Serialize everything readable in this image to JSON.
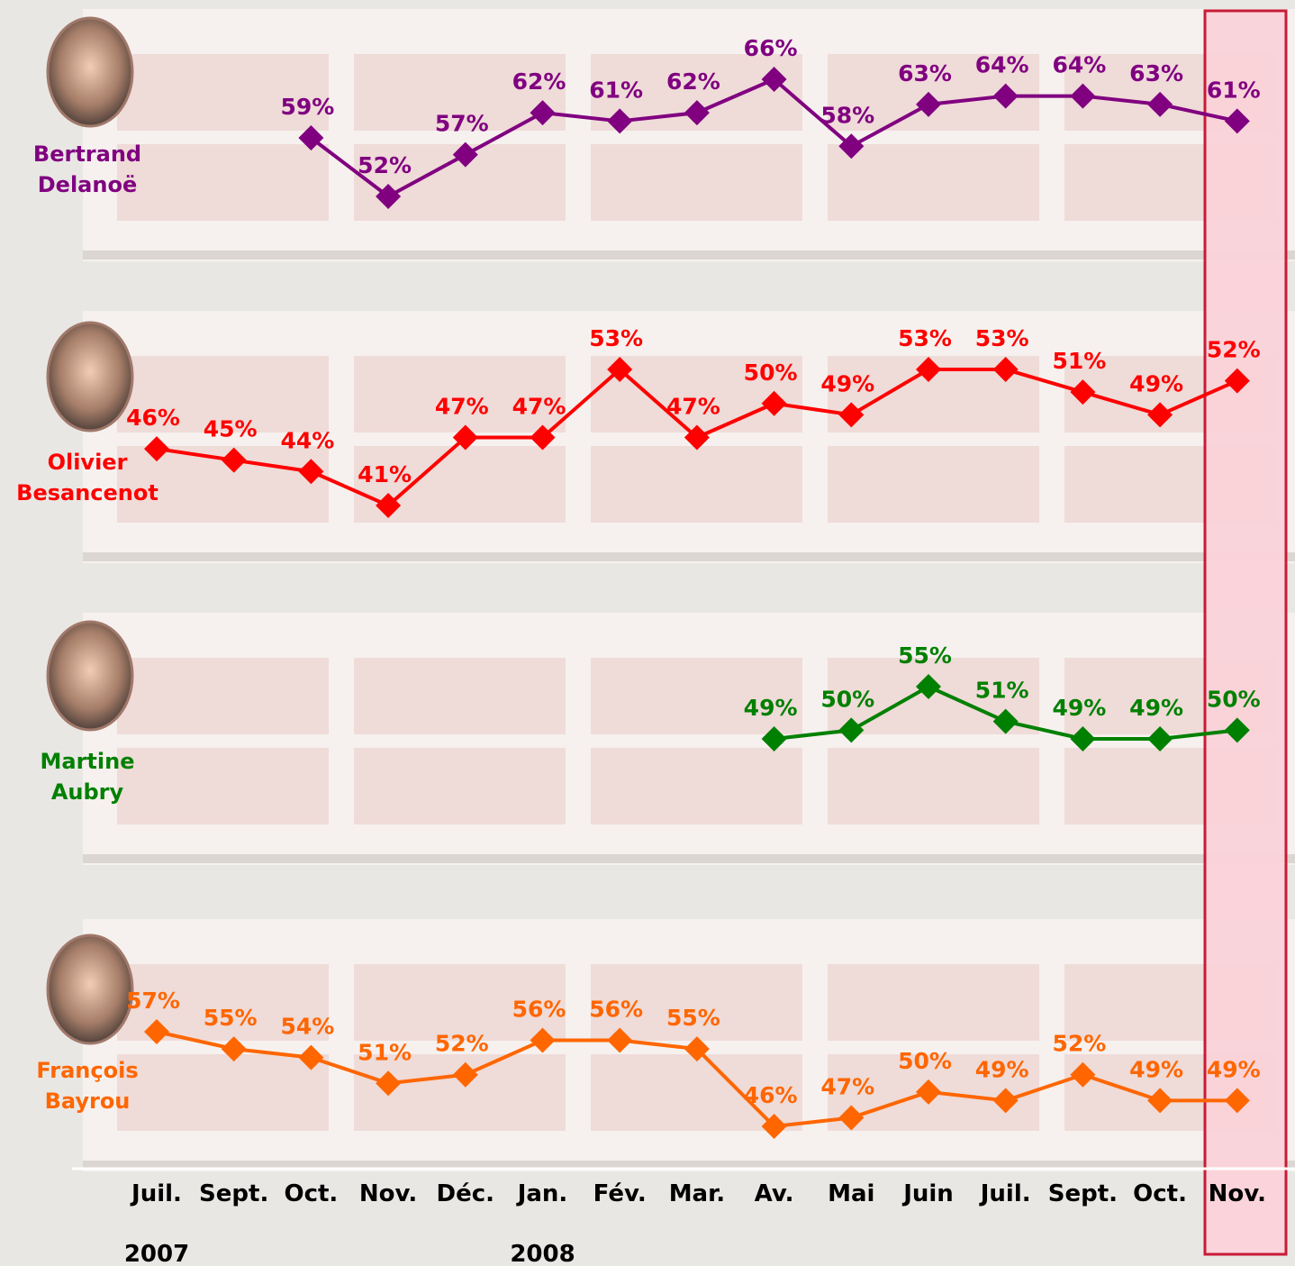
{
  "chart_data": {
    "type": "line",
    "categories": [
      "Juil.",
      "Sept.",
      "Oct.",
      "Nov.",
      "Déc.",
      "Jan.",
      "Fév.",
      "Mar.",
      "Av.",
      "Mai",
      "Juin",
      "Juil.",
      "Sept.",
      "Oct.",
      "Nov."
    ],
    "years": [
      "2007",
      null,
      null,
      null,
      null,
      "2008",
      null,
      null,
      null,
      null,
      null,
      null,
      null,
      null,
      null
    ],
    "series": [
      {
        "name": "Bertrand Delanoë",
        "color": "#800080",
        "values": [
          null,
          null,
          59,
          52,
          57,
          62,
          61,
          62,
          66,
          58,
          63,
          64,
          64,
          63,
          61
        ],
        "value_labels": [
          null,
          null,
          "59%",
          "52%",
          "57%",
          "62%",
          "61%",
          "62%",
          "66%",
          "58%",
          "63%",
          "64%",
          "64%",
          "63%",
          "61%"
        ]
      },
      {
        "name": "Olivier Besancenot",
        "color": "#ff0000",
        "values": [
          46,
          45,
          44,
          41,
          47,
          47,
          53,
          47,
          50,
          49,
          53,
          53,
          51,
          49,
          52
        ],
        "value_labels": [
          "46%",
          "45%",
          "44%",
          "41%",
          "47%",
          "47%",
          "53%",
          "47%",
          "50%",
          "49%",
          "53%",
          "53%",
          "51%",
          "49%",
          "52%"
        ]
      },
      {
        "name": "Martine Aubry",
        "color": "#008000",
        "values": [
          null,
          null,
          null,
          null,
          null,
          null,
          null,
          null,
          49,
          50,
          55,
          51,
          49,
          49,
          50
        ],
        "value_labels": [
          null,
          null,
          null,
          null,
          null,
          null,
          null,
          null,
          "49%",
          "50%",
          "55%",
          "51%",
          "49%",
          "49%",
          "50%"
        ]
      },
      {
        "name": "François Bayrou",
        "color": "#ff6600",
        "values": [
          57,
          55,
          54,
          51,
          52,
          56,
          56,
          55,
          46,
          47,
          50,
          49,
          52,
          49,
          49
        ],
        "value_labels": [
          "57%",
          "55%",
          "54%",
          "51%",
          "52%",
          "56%",
          "56%",
          "55%",
          "46%",
          "47%",
          "50%",
          "49%",
          "52%",
          "49%",
          "49%"
        ]
      }
    ]
  }
}
